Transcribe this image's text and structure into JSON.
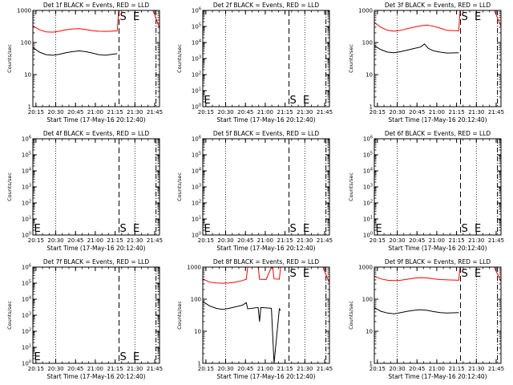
{
  "chart_data": [
    {
      "type": "line",
      "title": "Det 1f BLACK = Events, RED = LLD",
      "xlabel": "Start Time (17-May-16 20:12:40)",
      "ylabel": "Counts/sec",
      "y_scale": "log",
      "ylim": [
        1,
        1000
      ],
      "y_ticks": [
        {
          "v": 1,
          "label": "1"
        },
        {
          "v": 10,
          "label": "10"
        },
        {
          "v": 100,
          "label": "100"
        },
        {
          "v": 1000,
          "label": "1000"
        }
      ],
      "x_ticks": [
        "20:15",
        "20:30",
        "20:45",
        "21:00",
        "21:15",
        "21:30",
        "21:45"
      ],
      "markers": [
        {
          "label": "S",
          "x": "21:18"
        },
        {
          "label": "E",
          "x": "21:28"
        }
      ],
      "series": [
        {
          "color": "#ff0000",
          "points": [
            [
              0,
              330
            ],
            [
              5,
              250
            ],
            [
              10,
              215
            ],
            [
              15,
              210
            ],
            [
              20,
              225
            ],
            [
              25,
              250
            ],
            [
              30,
              265
            ],
            [
              35,
              270
            ],
            [
              40,
              255
            ],
            [
              45,
              235
            ],
            [
              50,
              225
            ],
            [
              55,
              222
            ],
            [
              64,
              230
            ],
            [
              65,
              1000
            ],
            [
              91,
              1000
            ],
            [
              92,
              800
            ],
            [
              96,
              280
            ]
          ]
        },
        {
          "color": "#000000",
          "points": [
            [
              0,
              70
            ],
            [
              5,
              50
            ],
            [
              10,
              42
            ],
            [
              15,
              40
            ],
            [
              20,
              43
            ],
            [
              25,
              48
            ],
            [
              30,
              52
            ],
            [
              35,
              55
            ],
            [
              40,
              52
            ],
            [
              45,
              47
            ],
            [
              50,
              42
            ],
            [
              55,
              40
            ],
            [
              64,
              45
            ]
          ]
        }
      ]
    },
    {
      "type": "line",
      "title": "Det 2f BLACK = Events, RED = LLD",
      "xlabel": "Start Time (17-May-16 20:12:40)",
      "ylabel": "Counts/sec",
      "y_scale": "log",
      "ylim": [
        1,
        1000000
      ],
      "y_ticks": [
        {
          "v": 1,
          "label": "10^0"
        },
        {
          "v": 10,
          "label": "10^1"
        },
        {
          "v": 100,
          "label": "10^2"
        },
        {
          "v": 1000,
          "label": "10^3"
        },
        {
          "v": 10000,
          "label": "10^4"
        },
        {
          "v": 100000,
          "label": "10^5"
        },
        {
          "v": 1000000,
          "label": "10^6"
        }
      ],
      "x_ticks": [
        "20:15",
        "20:30",
        "20:45",
        "21:00",
        "21:15",
        "21:30",
        "21:45"
      ],
      "markers": [
        {
          "label": "E",
          "x": "20:13"
        },
        {
          "label": "S",
          "x": "21:18"
        },
        {
          "label": "E",
          "x": "21:28"
        }
      ],
      "series": []
    },
    {
      "type": "line",
      "title": "Det 3f BLACK = Events, RED = LLD",
      "xlabel": "Start Time (17-May-16 20:12:40)",
      "ylabel": "Counts/sec",
      "y_scale": "log",
      "ylim": [
        1,
        1000
      ],
      "y_ticks": [
        {
          "v": 1,
          "label": "1"
        },
        {
          "v": 10,
          "label": "10"
        },
        {
          "v": 100,
          "label": "100"
        },
        {
          "v": 1000,
          "label": "1000"
        }
      ],
      "x_ticks": [
        "20:15",
        "20:30",
        "20:45",
        "21:00",
        "21:15",
        "21:30",
        "21:45"
      ],
      "markers": [
        {
          "label": "S",
          "x": "21:18"
        },
        {
          "label": "E",
          "x": "21:28"
        }
      ],
      "series": [
        {
          "color": "#ff0000",
          "points": [
            [
              0,
              420
            ],
            [
              5,
              300
            ],
            [
              10,
              240
            ],
            [
              15,
              225
            ],
            [
              20,
              240
            ],
            [
              25,
              270
            ],
            [
              30,
              300
            ],
            [
              35,
              330
            ],
            [
              40,
              350
            ],
            [
              45,
              320
            ],
            [
              50,
              280
            ],
            [
              55,
              240
            ],
            [
              64,
              230
            ],
            [
              65,
              1000
            ],
            [
              91,
              1000
            ],
            [
              92,
              800
            ],
            [
              96,
              320
            ]
          ]
        },
        {
          "color": "#000000",
          "points": [
            [
              0,
              80
            ],
            [
              5,
              60
            ],
            [
              10,
              50
            ],
            [
              15,
              48
            ],
            [
              20,
              52
            ],
            [
              25,
              58
            ],
            [
              30,
              65
            ],
            [
              35,
              72
            ],
            [
              38,
              90
            ],
            [
              41,
              65
            ],
            [
              45,
              55
            ],
            [
              50,
              50
            ],
            [
              55,
              47
            ],
            [
              64,
              48
            ]
          ]
        }
      ]
    },
    {
      "type": "line",
      "title": "Det 4f BLACK = Events, RED = LLD",
      "xlabel": "Start Time (17-May-16 20:12:40)",
      "ylabel": "Counts/sec",
      "y_scale": "log",
      "ylim": [
        1,
        1000000
      ],
      "y_ticks": [
        {
          "v": 1,
          "label": "10^0"
        },
        {
          "v": 10,
          "label": "10^1"
        },
        {
          "v": 100,
          "label": "10^2"
        },
        {
          "v": 1000,
          "label": "10^3"
        },
        {
          "v": 10000,
          "label": "10^4"
        },
        {
          "v": 100000,
          "label": "10^5"
        },
        {
          "v": 1000000,
          "label": "10^6"
        }
      ],
      "x_ticks": [
        "20:15",
        "20:30",
        "20:45",
        "21:00",
        "21:15",
        "21:30",
        "21:45"
      ],
      "markers": [
        {
          "label": "E",
          "x": "20:13"
        },
        {
          "label": "S",
          "x": "21:18"
        },
        {
          "label": "E",
          "x": "21:28"
        }
      ],
      "series": []
    },
    {
      "type": "line",
      "title": "Det 5f BLACK = Events, RED = LLD",
      "xlabel": "Start Time (17-May-16 20:12:40)",
      "ylabel": "Counts/sec",
      "y_scale": "log",
      "ylim": [
        1,
        1000000
      ],
      "y_ticks": [
        {
          "v": 1,
          "label": "10^0"
        },
        {
          "v": 10,
          "label": "10^1"
        },
        {
          "v": 100,
          "label": "10^2"
        },
        {
          "v": 1000,
          "label": "10^3"
        },
        {
          "v": 10000,
          "label": "10^4"
        },
        {
          "v": 100000,
          "label": "10^5"
        },
        {
          "v": 1000000,
          "label": "10^6"
        }
      ],
      "x_ticks": [
        "20:15",
        "20:30",
        "20:45",
        "21:00",
        "21:15",
        "21:30",
        "21:45"
      ],
      "markers": [
        {
          "label": "E",
          "x": "20:13"
        },
        {
          "label": "S",
          "x": "21:18"
        },
        {
          "label": "E",
          "x": "21:28"
        }
      ],
      "series": []
    },
    {
      "type": "line",
      "title": "Det 6f BLACK = Events, RED = LLD",
      "xlabel": "Start Time (17-May-16 20:12:40)",
      "ylabel": "Counts/sec",
      "y_scale": "log",
      "ylim": [
        1,
        1000000
      ],
      "y_ticks": [
        {
          "v": 1,
          "label": "10^0"
        },
        {
          "v": 10,
          "label": "10^1"
        },
        {
          "v": 100,
          "label": "10^2"
        },
        {
          "v": 1000,
          "label": "10^3"
        },
        {
          "v": 10000,
          "label": "10^4"
        },
        {
          "v": 100000,
          "label": "10^5"
        },
        {
          "v": 1000000,
          "label": "10^6"
        }
      ],
      "x_ticks": [
        "20:15",
        "20:30",
        "20:45",
        "21:00",
        "21:15",
        "21:30",
        "21:45"
      ],
      "markers": [
        {
          "label": "E",
          "x": "20:13"
        },
        {
          "label": "S",
          "x": "21:18"
        },
        {
          "label": "E",
          "x": "21:28"
        }
      ],
      "series": []
    },
    {
      "type": "line",
      "title": "Det 7f BLACK = Events, RED = LLD",
      "xlabel": "Start Time (17-May-16 20:12:40)",
      "ylabel": "Counts/sec",
      "y_scale": "log",
      "ylim": [
        1,
        1000000
      ],
      "y_ticks": [
        {
          "v": 1,
          "label": "10^0"
        },
        {
          "v": 10,
          "label": "10^1"
        },
        {
          "v": 100,
          "label": "10^2"
        },
        {
          "v": 1000,
          "label": "10^3"
        },
        {
          "v": 10000,
          "label": "10^4"
        },
        {
          "v": 100000,
          "label": "10^5"
        },
        {
          "v": 1000000,
          "label": "10^6"
        }
      ],
      "x_ticks": [
        "20:15",
        "20:30",
        "20:45",
        "21:00",
        "21:15",
        "21:30",
        "21:45"
      ],
      "markers": [
        {
          "label": "E",
          "x": "20:13"
        },
        {
          "label": "S",
          "x": "21:18"
        },
        {
          "label": "E",
          "x": "21:28"
        }
      ],
      "series": []
    },
    {
      "type": "line",
      "title": "Det 8f BLACK = Events, RED = LLD",
      "xlabel": "Start Time (17-May-16 20:12:40)",
      "ylabel": "Counts/sec",
      "y_scale": "log",
      "ylim": [
        1,
        1000
      ],
      "y_ticks": [
        {
          "v": 1,
          "label": "1"
        },
        {
          "v": 10,
          "label": "10"
        },
        {
          "v": 100,
          "label": "100"
        },
        {
          "v": 1000,
          "label": "1000"
        }
      ],
      "x_ticks": [
        "20:15",
        "20:30",
        "20:45",
        "21:00",
        "21:15",
        "21:30",
        "21:45"
      ],
      "markers": [
        {
          "label": "S",
          "x": "21:18"
        },
        {
          "label": "E",
          "x": "21:28"
        }
      ],
      "series": [
        {
          "color": "#ff0000",
          "points": [
            [
              0,
              430
            ],
            [
              5,
              340
            ],
            [
              10,
              320
            ],
            [
              15,
              315
            ],
            [
              20,
              320
            ],
            [
              25,
              340
            ],
            [
              30,
              380
            ],
            [
              33,
              420
            ],
            [
              34,
              1000
            ],
            [
              42,
              1000
            ],
            [
              43,
              420
            ],
            [
              48,
              410
            ],
            [
              52,
              1000
            ],
            [
              53,
              1000
            ],
            [
              54,
              430
            ],
            [
              58,
              420
            ],
            [
              59,
              1000
            ],
            [
              91,
              1000
            ],
            [
              92,
              800
            ],
            [
              96,
              320
            ]
          ]
        },
        {
          "color": "#000000",
          "points": [
            [
              0,
              85
            ],
            [
              5,
              62
            ],
            [
              10,
              52
            ],
            [
              15,
              48
            ],
            [
              20,
              52
            ],
            [
              25,
              58
            ],
            [
              30,
              65
            ],
            [
              33,
              78
            ],
            [
              34,
              50
            ],
            [
              42,
              55
            ],
            [
              43,
              20
            ],
            [
              44,
              55
            ],
            [
              52,
              52
            ],
            [
              54,
              1
            ],
            [
              58,
              50
            ],
            [
              59,
              45
            ]
          ]
        }
      ]
    },
    {
      "type": "line",
      "title": "Det 9f BLACK = Events, RED = LLD",
      "xlabel": "Start Time (17-May-16 20:12:40)",
      "ylabel": "Counts/sec",
      "y_scale": "log",
      "ylim": [
        1,
        1000
      ],
      "y_ticks": [
        {
          "v": 1,
          "label": "1"
        },
        {
          "v": 10,
          "label": "10"
        },
        {
          "v": 100,
          "label": "100"
        },
        {
          "v": 1000,
          "label": "1000"
        }
      ],
      "x_ticks": [
        "20:15",
        "20:30",
        "20:45",
        "21:00",
        "21:15",
        "21:30",
        "21:45"
      ],
      "markers": [
        {
          "label": "S",
          "x": "21:18"
        },
        {
          "label": "E",
          "x": "21:28"
        }
      ],
      "series": [
        {
          "color": "#ff0000",
          "points": [
            [
              0,
              520
            ],
            [
              5,
              430
            ],
            [
              10,
              390
            ],
            [
              15,
              380
            ],
            [
              20,
              390
            ],
            [
              25,
              420
            ],
            [
              30,
              450
            ],
            [
              35,
              470
            ],
            [
              40,
              460
            ],
            [
              45,
              430
            ],
            [
              50,
              410
            ],
            [
              55,
              400
            ],
            [
              64,
              390
            ],
            [
              65,
              1000
            ],
            [
              91,
              1000
            ],
            [
              92,
              800
            ],
            [
              96,
              360
            ]
          ]
        },
        {
          "color": "#000000",
          "points": [
            [
              0,
              55
            ],
            [
              5,
              42
            ],
            [
              10,
              37
            ],
            [
              15,
              35
            ],
            [
              20,
              38
            ],
            [
              25,
              42
            ],
            [
              30,
              45
            ],
            [
              35,
              47
            ],
            [
              40,
              45
            ],
            [
              45,
              41
            ],
            [
              50,
              38
            ],
            [
              55,
              37
            ],
            [
              64,
              38
            ]
          ]
        }
      ]
    }
  ]
}
